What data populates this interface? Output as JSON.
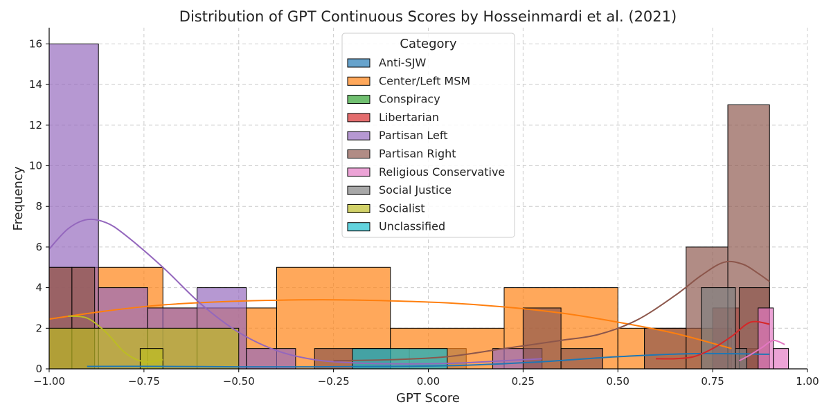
{
  "chart_data": {
    "type": "histogram",
    "title": "Distribution of GPT Continuous Scores by Hosseinmardi et al. (2021)",
    "xlabel": "GPT Score",
    "ylabel": "Frequency",
    "xlim": [
      -1.0,
      1.0
    ],
    "ylim": [
      0,
      16.8
    ],
    "x_ticks": [
      "−1.00",
      "−0.75",
      "−0.50",
      "−0.25",
      "0.00",
      "0.25",
      "0.50",
      "0.75",
      "1.00"
    ],
    "x_tick_values": [
      -1.0,
      -0.75,
      -0.5,
      -0.25,
      0.0,
      0.25,
      0.5,
      0.75,
      1.0
    ],
    "y_ticks": [
      "0",
      "2",
      "4",
      "6",
      "8",
      "10",
      "12",
      "14",
      "16"
    ],
    "y_tick_values": [
      0,
      2,
      4,
      6,
      8,
      10,
      12,
      14,
      16
    ],
    "grid": true,
    "legend_title": "Category",
    "legend_position": "top-center",
    "series": [
      {
        "name": "Anti-SJW",
        "color": "#1f77b4",
        "bins": [
          [
            -0.2,
            -0.05,
            1
          ],
          [
            -0.05,
            0.1,
            1
          ]
        ],
        "kde": [
          [
            -0.9,
            0.12
          ],
          [
            -0.7,
            0.12
          ],
          [
            -0.5,
            0.1
          ],
          [
            -0.3,
            0.1
          ],
          [
            -0.1,
            0.12
          ],
          [
            0.1,
            0.18
          ],
          [
            0.3,
            0.35
          ],
          [
            0.5,
            0.6
          ],
          [
            0.7,
            0.75
          ],
          [
            0.9,
            0.72
          ]
        ]
      },
      {
        "name": "Center/Left MSM",
        "color": "#ff7f0e",
        "bins": [
          [
            -1.0,
            -0.7,
            5
          ],
          [
            -0.7,
            -0.4,
            3
          ],
          [
            -0.4,
            -0.1,
            5
          ],
          [
            -0.1,
            0.2,
            2
          ],
          [
            0.2,
            0.5,
            4
          ],
          [
            0.5,
            0.8,
            2
          ]
        ],
        "kde": [
          [
            -1.0,
            2.45
          ],
          [
            -0.85,
            2.85
          ],
          [
            -0.7,
            3.15
          ],
          [
            -0.55,
            3.3
          ],
          [
            -0.4,
            3.38
          ],
          [
            -0.25,
            3.4
          ],
          [
            -0.1,
            3.35
          ],
          [
            0.05,
            3.25
          ],
          [
            0.2,
            3.05
          ],
          [
            0.35,
            2.75
          ],
          [
            0.5,
            2.3
          ],
          [
            0.65,
            1.75
          ],
          [
            0.8,
            1.0
          ]
        ]
      },
      {
        "name": "Conspiracy",
        "color": "#2ca02c",
        "bins": [],
        "kde": []
      },
      {
        "name": "Libertarian",
        "color": "#d62728",
        "bins": [
          [
            0.75,
            0.82,
            3
          ],
          [
            0.82,
            0.87,
            1
          ]
        ],
        "kde": [
          [
            0.6,
            0.5
          ],
          [
            0.65,
            0.5
          ],
          [
            0.7,
            0.6
          ],
          [
            0.75,
            1.0
          ],
          [
            0.8,
            1.6
          ],
          [
            0.85,
            2.3
          ],
          [
            0.9,
            2.2
          ]
        ]
      },
      {
        "name": "Partisan Left",
        "color": "#9467bd",
        "bins": [
          [
            -1.0,
            -0.87,
            16
          ],
          [
            -0.87,
            -0.74,
            4
          ],
          [
            -0.74,
            -0.61,
            3
          ],
          [
            -0.61,
            -0.48,
            4
          ],
          [
            -0.48,
            -0.35,
            1
          ],
          [
            -0.35,
            -0.22,
            0
          ],
          [
            -0.22,
            -0.09,
            0
          ],
          [
            -0.09,
            0.04,
            0
          ],
          [
            0.04,
            0.17,
            0
          ],
          [
            0.17,
            0.3,
            1
          ]
        ],
        "kde": [
          [
            -1.0,
            5.9
          ],
          [
            -0.95,
            6.9
          ],
          [
            -0.9,
            7.35
          ],
          [
            -0.85,
            7.2
          ],
          [
            -0.8,
            6.6
          ],
          [
            -0.7,
            5.0
          ],
          [
            -0.6,
            3.2
          ],
          [
            -0.5,
            1.8
          ],
          [
            -0.4,
            0.9
          ],
          [
            -0.3,
            0.45
          ],
          [
            -0.2,
            0.3
          ],
          [
            -0.1,
            0.25
          ],
          [
            0.0,
            0.25
          ],
          [
            0.1,
            0.3
          ],
          [
            0.2,
            0.4
          ],
          [
            0.3,
            0.5
          ]
        ]
      },
      {
        "name": "Partisan Right",
        "color": "#8c564b",
        "bins": [
          [
            -1.0,
            -0.94,
            5
          ],
          [
            -0.94,
            -0.88,
            5
          ],
          [
            -0.3,
            -0.2,
            1
          ],
          [
            -0.2,
            -0.1,
            1
          ],
          [
            0.25,
            0.35,
            3
          ],
          [
            0.35,
            0.46,
            1
          ],
          [
            0.57,
            0.68,
            2
          ],
          [
            0.68,
            0.79,
            6
          ],
          [
            0.79,
            0.9,
            13
          ],
          [
            0.82,
            0.9,
            4
          ]
        ],
        "kde": [
          [
            -0.25,
            0.4
          ],
          [
            -0.1,
            0.45
          ],
          [
            0.05,
            0.6
          ],
          [
            0.2,
            1.0
          ],
          [
            0.35,
            1.4
          ],
          [
            0.45,
            1.7
          ],
          [
            0.55,
            2.4
          ],
          [
            0.65,
            3.6
          ],
          [
            0.72,
            4.6
          ],
          [
            0.78,
            5.25
          ],
          [
            0.83,
            5.15
          ],
          [
            0.87,
            4.7
          ],
          [
            0.9,
            4.3
          ]
        ]
      },
      {
        "name": "Religious Conservative",
        "color": "#e377c2",
        "bins": [
          [
            0.87,
            0.91,
            3
          ],
          [
            0.91,
            0.95,
            1
          ]
        ],
        "kde": [
          [
            0.82,
            0.4
          ],
          [
            0.85,
            0.7
          ],
          [
            0.88,
            1.05
          ],
          [
            0.91,
            1.4
          ],
          [
            0.94,
            1.2
          ]
        ]
      },
      {
        "name": "Social Justice",
        "color": "#7f7f7f",
        "bins": [
          [
            0.72,
            0.81,
            4
          ],
          [
            0.81,
            0.84,
            1
          ]
        ],
        "kde": []
      },
      {
        "name": "Socialist",
        "color": "#bcbd22",
        "bins": [
          [
            -1.0,
            -0.5,
            2
          ],
          [
            -0.76,
            -0.7,
            1
          ]
        ],
        "kde": [
          [
            -0.95,
            2.6
          ],
          [
            -0.9,
            2.5
          ],
          [
            -0.85,
            1.8
          ],
          [
            -0.8,
            0.8
          ],
          [
            -0.75,
            0.35
          ],
          [
            -0.7,
            0.45
          ]
        ]
      },
      {
        "name": "Unclassified",
        "color": "#17becf",
        "bins": [
          [
            -0.2,
            0.05,
            1
          ]
        ],
        "kde": []
      }
    ]
  }
}
